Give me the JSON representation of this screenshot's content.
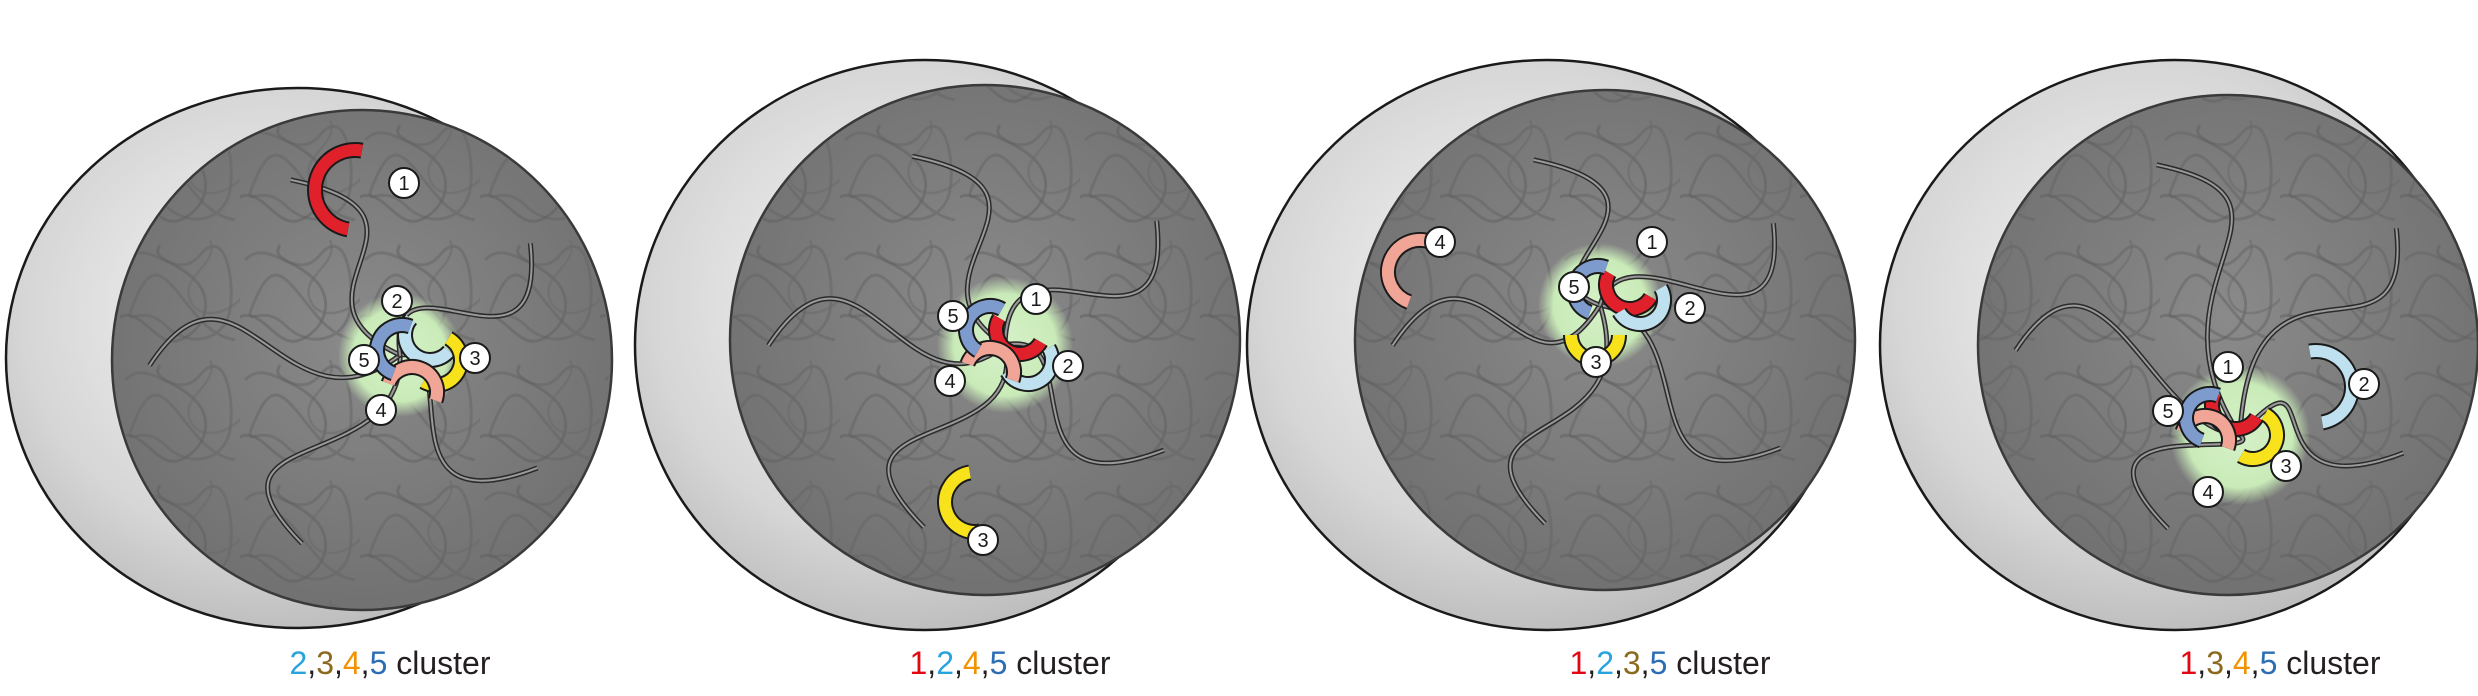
{
  "panels": [
    {
      "caption_numbers": [
        "2",
        "3",
        "4",
        "5"
      ],
      "caption_colors": [
        "#29a3dc",
        "#8b6a1f",
        "#f39200",
        "#2d6db3"
      ],
      "caption_suffix": "cluster",
      "markers": [
        "1",
        "2",
        "3",
        "4",
        "5"
      ]
    },
    {
      "caption_numbers": [
        "1",
        "2",
        "4",
        "5"
      ],
      "caption_colors": [
        "#e30613",
        "#29a3dc",
        "#f39200",
        "#2d6db3"
      ],
      "caption_suffix": "cluster",
      "markers": [
        "1",
        "2",
        "3",
        "4",
        "5"
      ]
    },
    {
      "caption_numbers": [
        "1",
        "2",
        "3",
        "5"
      ],
      "caption_colors": [
        "#e30613",
        "#29a3dc",
        "#8b6a1f",
        "#2d6db3"
      ],
      "caption_suffix": "cluster",
      "markers": [
        "1",
        "2",
        "3",
        "4",
        "5"
      ]
    },
    {
      "caption_numbers": [
        "1",
        "3",
        "4",
        "5"
      ],
      "caption_colors": [
        "#e30613",
        "#8b6a1f",
        "#f39200",
        "#2d6db3"
      ],
      "caption_suffix": "cluster",
      "markers": [
        "1",
        "2",
        "3",
        "4",
        "5"
      ]
    }
  ],
  "locus_colors": {
    "1": "#e0202a",
    "2": "#bfe0ee",
    "3": "#f7e21b",
    "4": "#f1a596",
    "5": "#7d9ccd"
  },
  "cluster_color": "#cfeec0",
  "nucleus_color": "#7f7f7f"
}
